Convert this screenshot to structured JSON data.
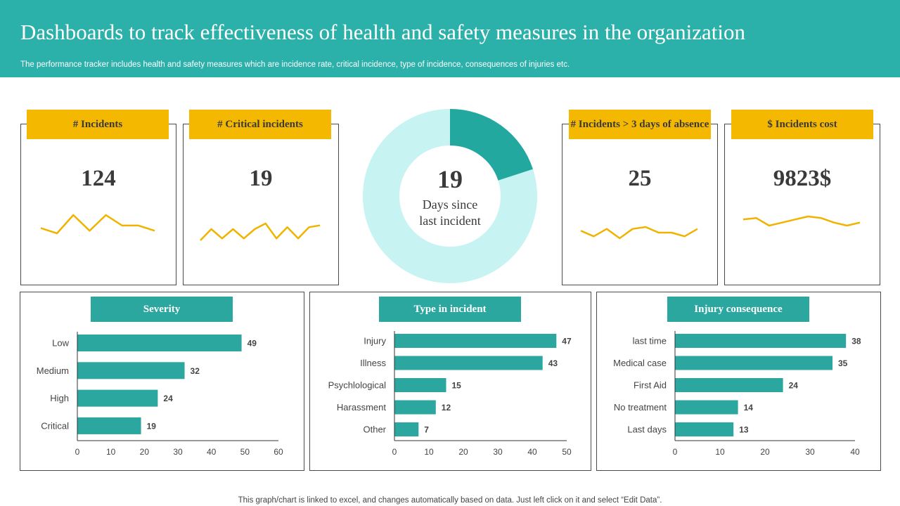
{
  "header": {
    "title": "Dashboards to track effectiveness of health and safety measures in the organization",
    "subtitle": "The performance tracker includes health and safety measures which are incidence rate, critical incidence, type of incidence, consequences of injuries etc."
  },
  "colors": {
    "header_bg": "#2bb0aa",
    "kpi_tag": "#f5b800",
    "bar": "#2ba7a0",
    "donut_filled": "#22a89f",
    "donut_remaining": "#c8f3f3",
    "sparkline": "#f0b400"
  },
  "kpis": [
    {
      "label": "# Incidents",
      "value": "124",
      "trend": [
        5,
        3,
        10,
        4,
        10,
        6,
        6,
        4
      ]
    },
    {
      "label": "# Critical incidents",
      "value": "19",
      "trend": [
        2,
        8,
        3,
        8,
        3,
        8,
        11,
        3,
        9,
        3,
        9,
        10
      ]
    },
    {
      "label": "# Incidents > 3 days of absence",
      "value": "25",
      "trend": [
        7,
        4,
        8,
        3,
        8,
        9,
        6,
        6,
        4,
        8
      ]
    },
    {
      "label": "$ Incidents cost",
      "value": "9823$",
      "trend": [
        8,
        9,
        4,
        6,
        8,
        10,
        9,
        6,
        4,
        6
      ]
    }
  ],
  "donut": {
    "number": "19",
    "caption_line1": "Days since",
    "caption_line2": "last incident",
    "filled_fraction": 0.2
  },
  "chart_data": [
    {
      "type": "bar",
      "orientation": "horizontal",
      "title": "Severity",
      "categories": [
        "Low",
        "Medium",
        "High",
        "Critical"
      ],
      "values": [
        49,
        32,
        24,
        19
      ],
      "xlim": [
        0,
        60
      ],
      "xticks": [
        0,
        10,
        20,
        30,
        40,
        50,
        60
      ],
      "grid": false
    },
    {
      "type": "bar",
      "orientation": "horizontal",
      "title": "Type in incident",
      "categories": [
        "Injury",
        "Illness",
        "Psychlological",
        "Harassment",
        "Other"
      ],
      "values": [
        47,
        43,
        15,
        12,
        7
      ],
      "xlim": [
        0,
        50
      ],
      "xticks": [
        0,
        10,
        20,
        30,
        40,
        50
      ],
      "grid": false
    },
    {
      "type": "bar",
      "orientation": "horizontal",
      "title": "Injury consequence",
      "categories": [
        "last time",
        "Medical case",
        "First Aid",
        "No treatment",
        "Last days"
      ],
      "values": [
        38,
        35,
        24,
        14,
        13
      ],
      "xlim": [
        0,
        40
      ],
      "xticks": [
        0,
        10,
        20,
        30,
        40
      ],
      "grid": false
    }
  ],
  "footer": {
    "note": "This graph/chart is linked to excel, and changes automatically based on data. Just left click on it and select “Edit Data”."
  }
}
